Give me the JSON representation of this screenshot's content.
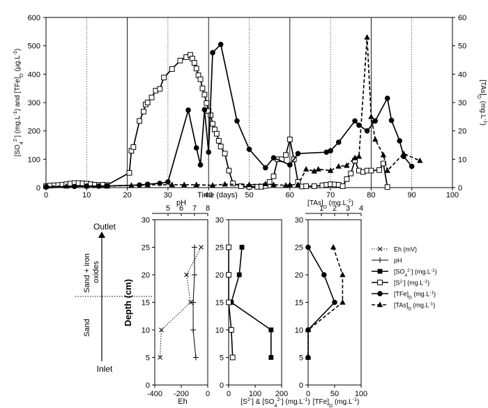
{
  "chart_data": [
    {
      "id": "top",
      "type": "line",
      "xlabel": "Time (days)",
      "xlim": [
        0,
        100
      ],
      "xticks": [
        0,
        10,
        20,
        30,
        40,
        50,
        60,
        70,
        80,
        90,
        100
      ],
      "ylim": [
        0,
        600
      ],
      "yticks": [
        0,
        100,
        200,
        300,
        400,
        500,
        600
      ],
      "ylabel_left": "[SO4 2-] (mg.L-1) and [TFe]D (µg.L-1)",
      "ylabel_left_parts": [
        "[SO",
        "4",
        "2-",
        "] (mg.L",
        "-1",
        ") and [TFe]",
        "D",
        " (µg.L",
        "-1",
        ")"
      ],
      "y2lim": [
        0,
        60
      ],
      "y2ticks": [
        0,
        10,
        20,
        30,
        40,
        50,
        60
      ],
      "ylabel_right": "[TAs]D (mg.L-1)",
      "ylabel_right_parts": [
        "[TAs]",
        "D",
        " (mg.L",
        "-1",
        ")"
      ],
      "vlines": [
        10,
        20,
        30,
        40,
        50,
        60,
        70,
        80,
        90
      ],
      "series": [
        {
          "name": "open squares (left axis)",
          "marker": "open-square",
          "line": "solid",
          "axis": "left",
          "points": [
            [
              0,
              5
            ],
            [
              1,
              7
            ],
            [
              2,
              8
            ],
            [
              3,
              9
            ],
            [
              4,
              10
            ],
            [
              5,
              12
            ],
            [
              6,
              14
            ],
            [
              7,
              16
            ],
            [
              8,
              16
            ],
            [
              9,
              15
            ],
            [
              10,
              14
            ],
            [
              11,
              12
            ],
            [
              12,
              10
            ],
            [
              13,
              9
            ],
            [
              14,
              10
            ],
            [
              15,
              9
            ],
            [
              20.5,
              52
            ],
            [
              21,
              130
            ],
            [
              21.5,
              143
            ],
            [
              23,
              235
            ],
            [
              24,
              268
            ],
            [
              24.5,
              293
            ],
            [
              25,
              300
            ],
            [
              26,
              318
            ],
            [
              27,
              342
            ],
            [
              28,
              348
            ],
            [
              29,
              388
            ],
            [
              31,
              418
            ],
            [
              33,
              448
            ],
            [
              34.5,
              460
            ],
            [
              35.5,
              468
            ],
            [
              36,
              455
            ],
            [
              36.5,
              440
            ],
            [
              37,
              420
            ],
            [
              37.5,
              396
            ],
            [
              38,
              382
            ],
            [
              38.5,
              350
            ],
            [
              39,
              328
            ],
            [
              39.5,
              298
            ],
            [
              40,
              270
            ],
            [
              40.5,
              255
            ],
            [
              41,
              225
            ],
            [
              41.5,
              205
            ],
            [
              42,
              190
            ],
            [
              42.5,
              165
            ],
            [
              43,
              145
            ],
            [
              44,
              120
            ],
            [
              45,
              60
            ],
            [
              46,
              15
            ],
            [
              48,
              5
            ],
            [
              50,
              3
            ],
            [
              52,
              3
            ],
            [
              53,
              3
            ],
            [
              54,
              6
            ],
            [
              55,
              20
            ],
            [
              56,
              40
            ],
            [
              57,
              100
            ],
            [
              58,
              100
            ],
            [
              59,
              115
            ],
            [
              60,
              170
            ],
            [
              61,
              100
            ],
            [
              62,
              20
            ],
            [
              63,
              4
            ],
            [
              64,
              5
            ],
            [
              66,
              5
            ],
            [
              68,
              8
            ],
            [
              69,
              10
            ],
            [
              70,
              12
            ],
            [
              71,
              11
            ],
            [
              72,
              10
            ],
            [
              73,
              5
            ],
            [
              74,
              30
            ],
            [
              75,
              50
            ],
            [
              76,
              95
            ],
            [
              77,
              60
            ],
            [
              78,
              55
            ],
            [
              79,
              60
            ],
            [
              80,
              60
            ],
            [
              82,
              62
            ],
            [
              83,
              85
            ],
            [
              84,
              2
            ]
          ]
        },
        {
          "name": "filled circles (left axis)",
          "marker": "filled-circle",
          "line": "solid",
          "axis": "left",
          "points": [
            [
              0,
              2
            ],
            [
              7,
              4
            ],
            [
              10,
              5
            ],
            [
              13,
              5
            ],
            [
              15,
              6
            ],
            [
              23,
              9
            ],
            [
              25,
              12
            ],
            [
              28,
              15
            ],
            [
              30,
              20
            ],
            [
              35,
              273
            ],
            [
              37,
              140
            ],
            [
              38,
              80
            ],
            [
              39,
              275
            ],
            [
              40,
              125
            ],
            [
              41,
              476
            ],
            [
              43,
              505
            ],
            [
              47,
              235
            ],
            [
              50,
              135
            ],
            [
              54,
              70
            ],
            [
              56,
              105
            ],
            [
              60,
              80
            ],
            [
              62,
              120
            ],
            [
              69,
              125
            ],
            [
              70,
              130
            ],
            [
              72,
              160
            ],
            [
              76,
              235
            ],
            [
              77,
              220
            ],
            [
              79,
              200
            ],
            [
              81,
              235
            ],
            [
              84,
              315
            ],
            [
              85,
              237
            ],
            [
              87,
              165
            ],
            [
              88,
              110
            ],
            [
              90,
              75
            ]
          ]
        },
        {
          "name": "filled triangles (right axis)",
          "marker": "filled-triangle",
          "line": "dashed",
          "axis": "right",
          "points": [
            [
              0,
              0.5
            ],
            [
              5,
              0.5
            ],
            [
              10,
              0.6
            ],
            [
              15,
              0.5
            ],
            [
              21,
              0.8
            ],
            [
              25,
              1.0
            ],
            [
              31,
              1.0
            ],
            [
              34,
              1.0
            ],
            [
              37,
              1.0
            ],
            [
              41,
              0.8
            ],
            [
              44,
              1.2
            ],
            [
              50,
              1.0
            ],
            [
              54,
              1.3
            ],
            [
              56,
              1.0
            ],
            [
              59,
              0.8
            ],
            [
              60,
              1.0
            ],
            [
              62,
              1.0
            ],
            [
              64,
              6.5
            ],
            [
              66,
              5.8
            ],
            [
              67,
              6.5
            ],
            [
              70,
              6.0
            ],
            [
              72,
              7.5
            ],
            [
              74,
              7.8
            ],
            [
              76,
              10.5
            ],
            [
              77,
              11.0
            ],
            [
              79,
              53.0
            ],
            [
              80,
              25.0
            ],
            [
              81,
              17.0
            ],
            [
              83,
              11.5
            ],
            [
              84,
              6.0
            ],
            [
              88,
              12.0
            ],
            [
              92,
              9.5
            ]
          ]
        }
      ]
    },
    {
      "id": "panel-eh-ph",
      "type": "line",
      "xlabel": "Eh",
      "xlim": [
        -400,
        0
      ],
      "xticks": [
        -400,
        -200,
        0
      ],
      "x2label": "pH",
      "x2lim": [
        4,
        8
      ],
      "x2ticks": [
        5,
        6,
        7,
        8
      ],
      "ylabel": "Depth (cm)",
      "ylim": [
        0,
        30
      ],
      "yticks": [
        0,
        5,
        10,
        15,
        20,
        25,
        30
      ],
      "series": [
        {
          "name": "Eh (mV)",
          "marker": "x",
          "line": "dotted",
          "axis": "bottom",
          "points": [
            [
              -50,
              25
            ],
            [
              -160,
              20
            ],
            [
              -130,
              15
            ],
            [
              -350,
              10
            ],
            [
              -360,
              5
            ]
          ]
        },
        {
          "name": "pH",
          "marker": "plus",
          "line": "solid",
          "axis": "top",
          "points": [
            [
              7.0,
              25
            ],
            [
              7.0,
              20
            ],
            [
              6.9,
              15
            ],
            [
              6.9,
              10
            ],
            [
              7.1,
              5
            ]
          ]
        }
      ]
    },
    {
      "id": "panel-sulfur",
      "type": "line",
      "xlabel": "[S2-] & [SO4 2-] (mg.L-1)",
      "xlabel_parts": [
        "[S",
        "2-",
        "] & [SO",
        "4",
        "2-",
        "] (mg.L",
        "-1",
        ")"
      ],
      "xlim": [
        0,
        200
      ],
      "xticks": [
        0,
        100,
        200
      ],
      "ylim": [
        0,
        30
      ],
      "yticks": [
        0,
        5,
        10,
        15,
        20,
        25,
        30
      ],
      "series": [
        {
          "name": "[SO4 2-]",
          "marker": "filled-square",
          "line": "solid",
          "axis": "bottom",
          "points": [
            [
              50,
              25
            ],
            [
              40,
              20
            ],
            [
              10,
              15
            ],
            [
              160,
              10
            ],
            [
              160,
              5
            ]
          ]
        },
        {
          "name": "[S2-]",
          "marker": "open-square",
          "line": "solid",
          "axis": "bottom",
          "points": [
            [
              0,
              25
            ],
            [
              0,
              20
            ],
            [
              0,
              15
            ],
            [
              10,
              10
            ],
            [
              15,
              5
            ]
          ]
        }
      ]
    },
    {
      "id": "panel-fe-as",
      "type": "line",
      "xlabel": "[TFe]D (mg.L-1)",
      "xlabel_parts": [
        "[TFe]",
        "D",
        " (mg.L",
        "-1",
        ")"
      ],
      "xlim": [
        0,
        100
      ],
      "xticks": [
        0,
        50,
        100
      ],
      "x2label": "[TAs]D (mg.L-1)",
      "x2label_parts": [
        "[TAs]",
        "D",
        " (mg.L",
        "-1",
        ")"
      ],
      "x2lim": [
        0,
        4
      ],
      "x2ticks": [
        1,
        2,
        3,
        4
      ],
      "ylim": [
        0,
        30
      ],
      "yticks": [
        0,
        5,
        10,
        15,
        20,
        25,
        30
      ],
      "series": [
        {
          "name": "[TFe]D",
          "marker": "filled-circle",
          "line": "solid",
          "axis": "bottom",
          "points": [
            [
              0,
              25
            ],
            [
              30,
              20
            ],
            [
              50,
              15
            ],
            [
              0,
              10
            ],
            [
              0,
              5
            ]
          ]
        },
        {
          "name": "[TAs]D",
          "marker": "filled-triangle",
          "line": "dashed",
          "axis": "top",
          "points": [
            [
              1.9,
              25
            ],
            [
              2.6,
              20
            ],
            [
              2.6,
              15
            ],
            [
              0.0,
              10
            ],
            [
              0.0,
              5
            ]
          ]
        }
      ]
    }
  ],
  "column_diagram": {
    "outlet_label": "Outlet",
    "inlet_label": "Inlet",
    "zone_upper": [
      "Sand + iron",
      "oxides"
    ],
    "zone_lower": "Sand"
  },
  "legend": {
    "entries": [
      {
        "marker": "x",
        "line": "dotted",
        "parts": [
          "Eh (mV)"
        ]
      },
      {
        "marker": "plus",
        "line": "solid",
        "parts": [
          "pH"
        ]
      },
      {
        "marker": "filled-square",
        "line": "solid",
        "parts": [
          "[SO",
          "4",
          "2-",
          "] (mg.L",
          "-1",
          ")"
        ],
        "roles": [
          "n",
          "sub",
          "sup",
          "n",
          "sup",
          "n"
        ]
      },
      {
        "marker": "open-square",
        "line": "solid",
        "parts": [
          "[S",
          "2-",
          "] (mg.L",
          "-1",
          ")"
        ],
        "roles": [
          "n",
          "sup",
          "n",
          "sup",
          "n"
        ]
      },
      {
        "marker": "filled-circle",
        "line": "solid",
        "parts": [
          "[TFe]",
          "D",
          " (mg.L",
          "-1",
          ")"
        ],
        "roles": [
          "n",
          "sub",
          "n",
          "sup",
          "n"
        ]
      },
      {
        "marker": "filled-triangle",
        "line": "dashed",
        "parts": [
          "[TAs]",
          "D",
          " (mg.L",
          "-1",
          ")"
        ],
        "roles": [
          "n",
          "sub",
          "n",
          "sup",
          "n"
        ]
      }
    ]
  }
}
